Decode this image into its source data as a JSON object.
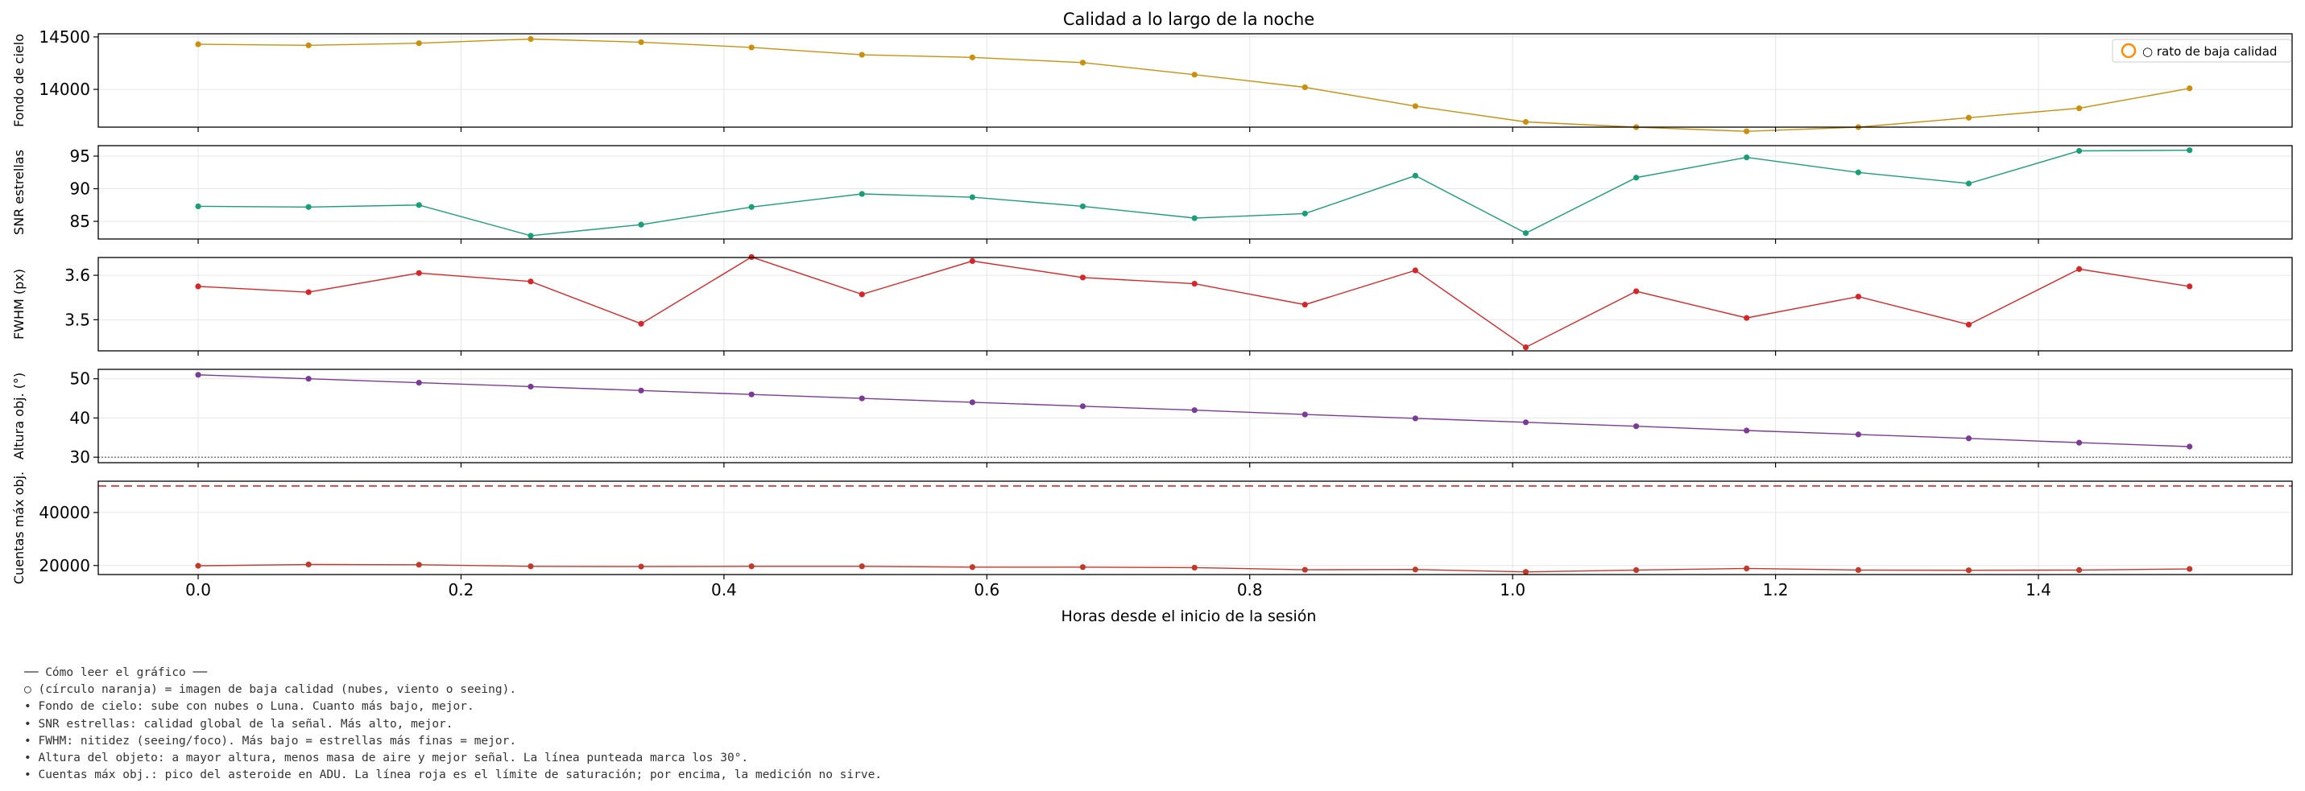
{
  "chart_data": {
    "type": "line",
    "title": "Calidad a lo largo de la noche",
    "xlabel": "Horas desde el inicio de la sesión",
    "x_ticks": [
      0.0,
      0.2,
      0.4,
      0.6,
      0.8,
      1.0,
      1.2,
      1.4
    ],
    "x_tick_labels": [
      "0.0",
      "0.2",
      "0.4",
      "0.6",
      "0.8",
      "1.0",
      "1.2",
      "1.4"
    ],
    "xlim": [
      -0.076,
      1.593
    ],
    "x": [
      0.0,
      0.084,
      0.168,
      0.253,
      0.337,
      0.421,
      0.505,
      0.589,
      0.673,
      0.758,
      0.842,
      0.926,
      1.01,
      1.094,
      1.178,
      1.263,
      1.347,
      1.431,
      1.515
    ],
    "grid": true,
    "legend": {
      "position": "top-right",
      "marker_label": "○ rato de baja calidad",
      "marker_color": "#ff8c00"
    },
    "panels": [
      {
        "ylabel": "Fondo de cielo",
        "color": "#c8900d",
        "ylim": [
          13640,
          14530
        ],
        "y_ticks": [
          14000,
          14500
        ],
        "y_tick_labels": [
          "14000",
          "14500"
        ],
        "values": [
          14430,
          14420,
          14440,
          14480,
          14450,
          14400,
          14330,
          14305,
          14255,
          14140,
          14020,
          13840,
          13690,
          13640,
          13600,
          13640,
          13730,
          13820,
          14010
        ]
      },
      {
        "ylabel": "SNR estrellas",
        "color": "#1a9e77",
        "ylim": [
          82.3,
          96.6
        ],
        "y_ticks": [
          85,
          90,
          95
        ],
        "y_tick_labels": [
          "85",
          "90",
          "95"
        ],
        "values": [
          87.3,
          87.2,
          87.5,
          82.8,
          84.5,
          87.2,
          89.2,
          88.7,
          87.3,
          85.5,
          86.2,
          92.0,
          83.2,
          91.7,
          94.8,
          92.5,
          90.8,
          95.8,
          95.9
        ]
      },
      {
        "ylabel": "FWHM (px)",
        "color": "#d62728",
        "ylim": [
          3.43,
          3.64
        ],
        "y_ticks": [
          3.5,
          3.6
        ],
        "y_tick_labels": [
          "3.5",
          "3.6"
        ],
        "dashed_hline": {
          "value": 50000,
          "panel": 4,
          "color": "#d62728"
        },
        "values": [
          3.575,
          3.562,
          3.605,
          3.586,
          3.491,
          3.641,
          3.557,
          3.632,
          3.595,
          3.581,
          3.534,
          3.611,
          3.438,
          3.564,
          3.504,
          3.552,
          3.489,
          3.614,
          3.575
        ]
      },
      {
        "ylabel": "Altura obj. (°)",
        "color": "#7b3a96",
        "ylim": [
          28.6,
          52.4
        ],
        "y_ticks": [
          30,
          40,
          50
        ],
        "y_tick_labels": [
          "30",
          "40",
          "50"
        ],
        "dotted_hline": 30,
        "values": [
          51.0,
          50.0,
          49.0,
          48.0,
          47.0,
          46.0,
          45.0,
          44.0,
          43.0,
          42.0,
          40.9,
          39.9,
          38.9,
          37.9,
          36.8,
          35.8,
          34.8,
          33.7,
          32.7
        ]
      },
      {
        "ylabel": "Cuentas máx obj.",
        "color": "#c0392b",
        "ylim": [
          16600,
          51800
        ],
        "y_ticks": [
          20000,
          40000
        ],
        "y_tick_labels": [
          "20000",
          "40000"
        ],
        "saturation_line": 50000,
        "saturation_color": "#d62728",
        "values": [
          19900,
          20400,
          20300,
          19700,
          19600,
          19700,
          19700,
          19400,
          19400,
          19200,
          18400,
          18500,
          17600,
          18300,
          18900,
          18300,
          18200,
          18300,
          18700
        ]
      }
    ]
  },
  "notes": {
    "heading": "── Cómo leer el gráfico ──",
    "lines": [
      "○ (círculo naranja) = imagen de baja calidad (nubes, viento o seeing).",
      "• Fondo de cielo: sube con nubes o Luna. Cuanto más bajo, mejor.",
      "• SNR estrellas: calidad global de la señal. Más alto, mejor.",
      "• FWHM: nitidez (seeing/foco). Más bajo = estrellas más finas = mejor.",
      "• Altura del objeto: a mayor altura, menos masa de aire y mejor señal. La línea punteada marca los 30°.",
      "• Cuentas máx obj.: pico del asteroide en ADU. La línea roja es el límite de saturación; por encima, la medición no sirve."
    ]
  }
}
